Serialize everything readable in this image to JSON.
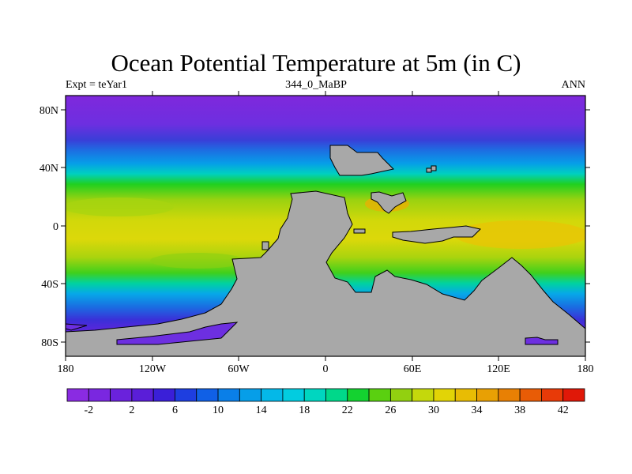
{
  "title": "Ocean Potential Temperature at 5m (in C)",
  "left_label": "Expt = teYar1",
  "center_label": "344_0_MaBP",
  "right_label": "ANN",
  "lon_ticks": [
    "180",
    "120W",
    "60W",
    "0",
    "60E",
    "120E",
    "180"
  ],
  "lat_ticks": [
    "80N",
    "40N",
    "0",
    "40S",
    "80S"
  ],
  "colorbar": {
    "labels": [
      "-2",
      "2",
      "6",
      "10",
      "14",
      "18",
      "22",
      "26",
      "30",
      "34",
      "38",
      "42"
    ],
    "colors": [
      "#8a2be2",
      "#7a27e0",
      "#6a22dc",
      "#5a1ed8",
      "#3a1fd8",
      "#1e3ee0",
      "#1060e6",
      "#0a7fe8",
      "#069ee8",
      "#04b8e8",
      "#02cce0",
      "#00d6c0",
      "#00d88a",
      "#14d230",
      "#5ad010",
      "#92d010",
      "#c4d80c",
      "#e2d406",
      "#e8bc04",
      "#e8a004",
      "#e88004",
      "#e85c06",
      "#e83a08",
      "#e01808"
    ]
  },
  "colors": {
    "land": "#a8a8a8",
    "polar": "#7f28dc",
    "tropical": "#c8d810"
  }
}
